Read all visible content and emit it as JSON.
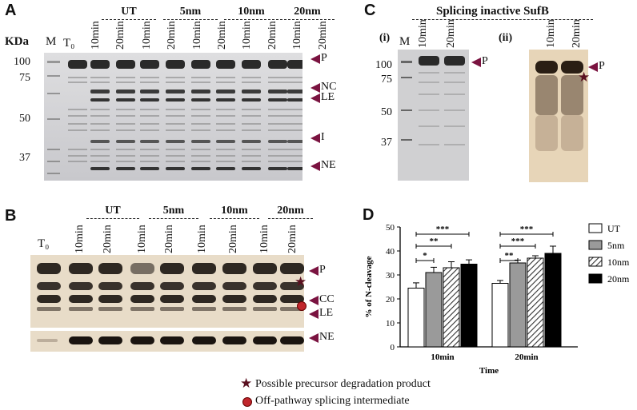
{
  "panelA": {
    "label": "A",
    "kda": "KDa",
    "marker": "M",
    "t0": "T₀",
    "groups": [
      "UT",
      "5nm",
      "10nm",
      "20nm"
    ],
    "lanes": [
      "10min",
      "20min",
      "10min",
      "20min",
      "10min",
      "20min",
      "10min",
      "20min",
      "10min",
      "20min"
    ],
    "mw": [
      "100",
      "75",
      "50",
      "37"
    ],
    "bands": [
      "P",
      "NC",
      "LE",
      "I",
      "NE"
    ]
  },
  "panelB": {
    "label": "B",
    "t0": "T₀",
    "groups": [
      "UT",
      "5nm",
      "10nm",
      "20nm"
    ],
    "lanes": [
      "10min",
      "20min",
      "10min",
      "20min",
      "10min",
      "20min",
      "10min",
      "20min"
    ],
    "bands": [
      "P",
      "CC",
      "LE",
      "NE"
    ]
  },
  "panelC": {
    "label": "C",
    "title": "Splicing inactive SufB",
    "sub1": "(i)",
    "sub2": "(ii)",
    "marker": "M",
    "lanes_i": [
      "10min",
      "20min"
    ],
    "lanes_ii": [
      "10min",
      "20min"
    ],
    "mw": [
      "100",
      "75",
      "50",
      "37"
    ],
    "band": "P"
  },
  "panelD": {
    "label": "D",
    "legend_note_star": "Possible precursor degradation product",
    "legend_note_dot": "Off-pathway splicing intermediate",
    "colors": {
      "UT": "#ffffff",
      "5nm": "#9a9a9a",
      "10nm": "hatch",
      "20nm": "#000000",
      "arrow": "#7a1340",
      "star": "#5a1020",
      "dot": "#c0262c"
    },
    "chart_data": {
      "type": "bar",
      "ylabel": "% of N-cleavage",
      "xlabel": "Time",
      "categories": [
        "10min",
        "20min"
      ],
      "ylim": [
        0,
        50
      ],
      "yticks": [
        0,
        10,
        20,
        30,
        40,
        50
      ],
      "series": [
        {
          "name": "UT",
          "values": [
            24.5,
            26.5
          ],
          "err": [
            2.2,
            1.2
          ]
        },
        {
          "name": "5nm",
          "values": [
            31,
            35
          ],
          "err": [
            2.2,
            1.2
          ]
        },
        {
          "name": "10nm",
          "values": [
            33,
            37
          ],
          "err": [
            2.5,
            1.0
          ]
        },
        {
          "name": "20nm",
          "values": [
            34.5,
            39
          ],
          "err": [
            1.8,
            3.0
          ]
        }
      ],
      "significance": [
        {
          "label": "***",
          "group": 0,
          "from": 0,
          "to": 3,
          "level": 47
        },
        {
          "label": "**",
          "group": 0,
          "from": 0,
          "to": 2,
          "level": 42
        },
        {
          "label": "*",
          "group": 0,
          "from": 0,
          "to": 1,
          "level": 36
        },
        {
          "label": "***",
          "group": 1,
          "from": 0,
          "to": 3,
          "level": 47
        },
        {
          "label": "***",
          "group": 1,
          "from": 0,
          "to": 2,
          "level": 42
        },
        {
          "label": "**",
          "group": 1,
          "from": 0,
          "to": 1,
          "level": 36
        }
      ]
    }
  }
}
